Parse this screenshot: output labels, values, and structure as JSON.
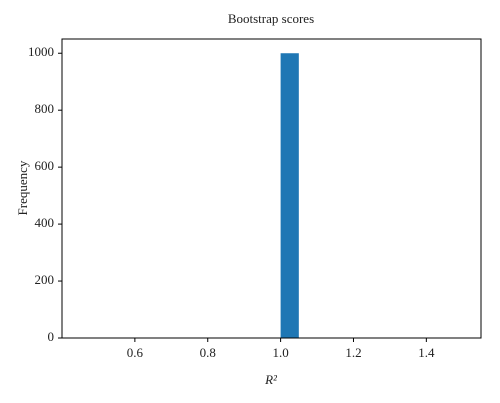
{
  "chart_data": {
    "type": "histogram",
    "title": "Bootstrap scores",
    "xlabel": "R²",
    "ylabel": "Frequency",
    "bins": [
      0.5,
      0.55,
      0.6,
      0.65,
      0.7,
      0.75,
      0.8,
      0.85,
      0.9,
      0.95,
      1.0,
      1.05,
      1.1,
      1.15,
      1.2,
      1.25,
      1.3,
      1.35,
      1.4,
      1.45,
      1.5
    ],
    "values": [
      0,
      0,
      0,
      0,
      0,
      0,
      0,
      0,
      0,
      0,
      1000,
      0,
      0,
      0,
      0,
      0,
      0,
      0,
      0,
      0
    ],
    "color": "#1f77b4",
    "xlim": [
      0.4,
      1.55
    ],
    "xticks": [
      0.6,
      0.8,
      {
        "value": 1.0,
        "label": "1.0"
      },
      1.2,
      1.4
    ],
    "ylim": [
      0,
      1050
    ],
    "yticks": [
      0,
      200,
      400,
      600,
      800,
      1000
    ],
    "grid": false
  }
}
